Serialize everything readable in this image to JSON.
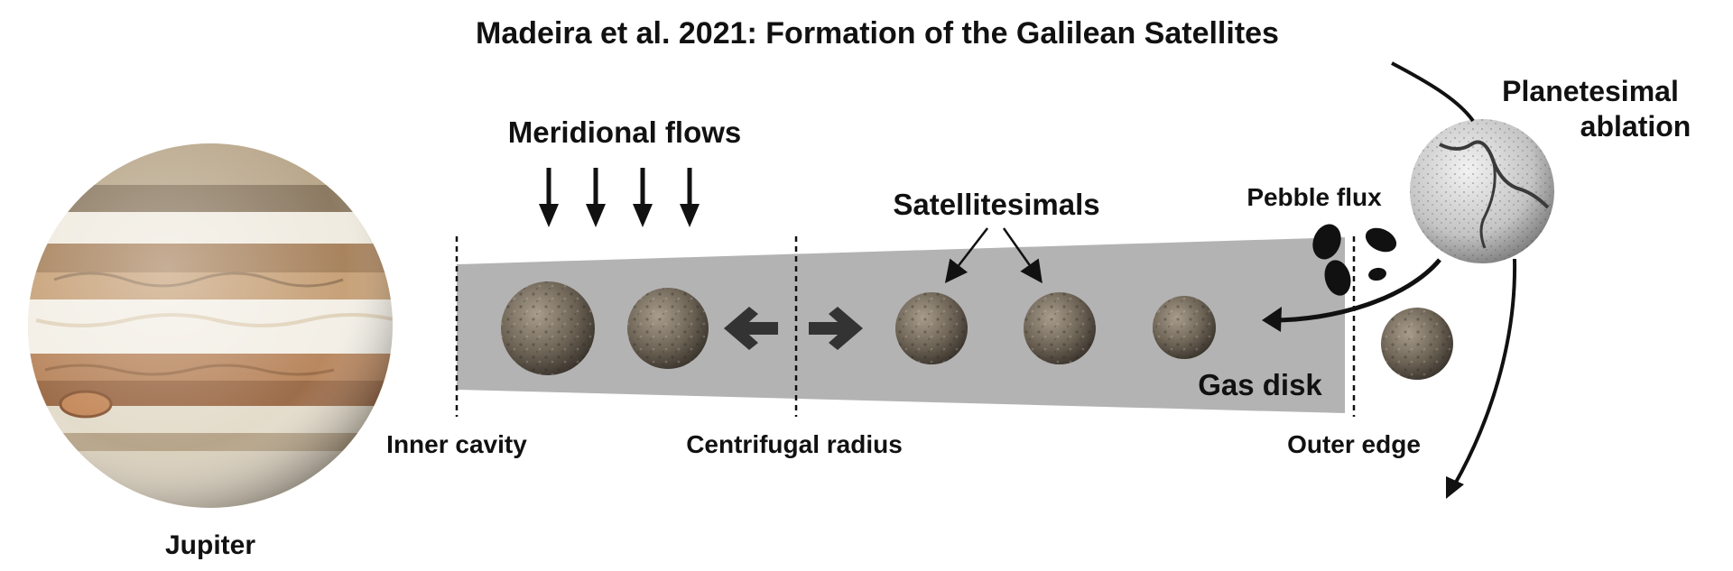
{
  "title": "Madeira et al. 2021: Formation of the Galilean Satellites",
  "labels": {
    "jupiter": "Jupiter",
    "meridional_flows": "Meridional flows",
    "satellitesimals": "Satellitesimals",
    "pebble_flux": "Pebble flux",
    "planetesimal_line1": "Planetesimal",
    "planetesimal_line2": "ablation",
    "gas_disk": "Gas disk",
    "inner_cavity": "Inner cavity",
    "centrifugal_radius": "Centrifugal radius",
    "outer_edge": "Outer edge"
  },
  "colors": {
    "disk": "#b3b3b3",
    "text": "#111111",
    "arrow": "#111111",
    "satellite": "#6e6456",
    "planetesimal": "#cfcfcf"
  }
}
